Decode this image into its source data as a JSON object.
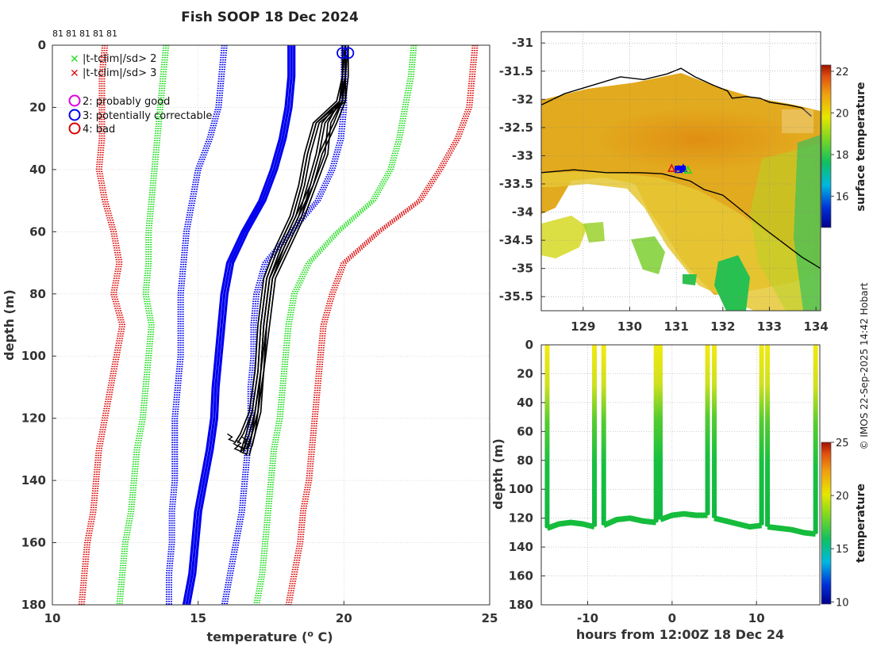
{
  "figure": {
    "title": "Fish SOOP 18 Dec 2024",
    "credit": "© IMOS 22-Sep-2025 14:42 Hobart",
    "profile_counts": [
      "81",
      "81",
      "81",
      "81",
      "81"
    ],
    "colors": {
      "profile": "#000000",
      "climatology": "#0000ee",
      "sd2": "#22dd22",
      "sd3": "#dd1111",
      "grid": "#c8c8c8",
      "good": "#dd00dd",
      "correctable": "#0000ee",
      "bad": "#dd0000"
    },
    "legend": {
      "cross_sd2": "|t-tclim|/sd> 2",
      "cross_sd3": "|t-tclim|/sd> 3",
      "flag2": "2: probably good",
      "flag3": "3: potentially correctable",
      "flag4": "4: bad"
    }
  },
  "chart_data": [
    {
      "type": "line",
      "title": "Fish SOOP 18 Dec 2024",
      "xlabel": "temperature (",
      "xlabel_sup": "o",
      "xlabel_end": " C)",
      "ylabel": "depth (m)",
      "xlim": [
        10,
        25
      ],
      "ylim": [
        0,
        180
      ],
      "y_reversed": true,
      "xticks": [
        "10",
        "15",
        "20",
        "25"
      ],
      "yticks": [
        "0",
        "20",
        "40",
        "60",
        "80",
        "100",
        "120",
        "140",
        "160",
        "180"
      ],
      "depth": [
        0,
        10,
        20,
        30,
        40,
        50,
        60,
        70,
        80,
        90,
        100,
        110,
        120,
        130,
        140,
        150,
        160,
        170,
        180
      ],
      "series": [
        {
          "name": "climatology mean",
          "style": "solid-thick",
          "color": "#0000ee",
          "values": [
            18.2,
            18.2,
            18.1,
            17.9,
            17.6,
            17.2,
            16.6,
            16.1,
            15.9,
            15.8,
            15.7,
            15.6,
            15.55,
            15.4,
            15.2,
            15.0,
            14.9,
            14.8,
            14.6
          ]
        },
        {
          "name": "mean -1 sd",
          "style": "dotted",
          "color": "#0000ee",
          "values": [
            15.9,
            15.8,
            15.7,
            15.4,
            15.0,
            14.8,
            14.6,
            14.5,
            14.4,
            14.4,
            14.4,
            14.3,
            14.2,
            14.2,
            14.2,
            14.1,
            14.1,
            14.0,
            14.0
          ]
        },
        {
          "name": "mean +1 sd",
          "style": "dotted",
          "color": "#0000ee",
          "values": [
            20.0,
            20.0,
            20.0,
            19.9,
            19.6,
            19.1,
            18.2,
            17.3,
            17.0,
            16.9,
            16.9,
            16.8,
            16.8,
            16.7,
            16.6,
            16.5,
            16.3,
            16.1,
            15.9
          ]
        },
        {
          "name": "mean -2 sd",
          "style": "dotted",
          "color": "#22dd22",
          "values": [
            13.9,
            13.8,
            13.7,
            13.6,
            13.5,
            13.4,
            13.3,
            13.3,
            13.2,
            13.4,
            13.3,
            13.2,
            13.1,
            12.9,
            12.8,
            12.7,
            12.5,
            12.4,
            12.3
          ]
        },
        {
          "name": "mean +2 sd",
          "style": "dotted",
          "color": "#22dd22",
          "values": [
            22.4,
            22.3,
            22.1,
            21.9,
            21.6,
            21.0,
            19.8,
            18.8,
            18.3,
            18.1,
            18.0,
            17.9,
            17.8,
            17.6,
            17.5,
            17.4,
            17.3,
            17.2,
            17.0
          ]
        },
        {
          "name": "mean -3 sd",
          "style": "dotted",
          "color": "#dd1111",
          "values": [
            11.8,
            11.7,
            11.7,
            11.7,
            11.6,
            11.8,
            12.1,
            12.3,
            12.1,
            12.4,
            12.2,
            12.0,
            11.8,
            11.6,
            11.5,
            11.4,
            11.2,
            11.1,
            11.0
          ]
        },
        {
          "name": "mean +3 sd",
          "style": "dotted",
          "color": "#dd1111",
          "values": [
            24.5,
            24.4,
            24.3,
            23.9,
            23.3,
            22.6,
            21.2,
            20.0,
            19.6,
            19.3,
            19.2,
            19.1,
            19.0,
            18.9,
            18.8,
            18.6,
            18.5,
            18.3,
            18.1
          ]
        }
      ],
      "profiles": [
        {
          "depth": [
            0,
            10,
            18,
            25,
            35,
            45,
            55,
            65,
            75,
            90,
            105,
            118,
            125,
            130
          ],
          "values": [
            20.0,
            20.0,
            19.9,
            19.3,
            19.1,
            18.8,
            18.5,
            18.0,
            17.5,
            17.3,
            17.2,
            17.0,
            16.8,
            16.6
          ]
        },
        {
          "depth": [
            0,
            10,
            18,
            25,
            35,
            45,
            55,
            65,
            75,
            90,
            105,
            118,
            125,
            131
          ],
          "values": [
            20.1,
            20.1,
            20.0,
            19.1,
            18.8,
            18.6,
            18.3,
            17.8,
            17.4,
            17.2,
            17.1,
            16.9,
            16.7,
            16.5
          ]
        },
        {
          "depth": [
            0,
            10,
            18,
            25,
            35,
            45,
            55,
            65,
            75,
            90,
            105,
            118,
            125,
            129
          ],
          "values": [
            20.0,
            20.0,
            19.9,
            19.5,
            19.4,
            19.0,
            18.6,
            18.1,
            17.6,
            17.4,
            17.2,
            17.1,
            16.9,
            16.8
          ]
        },
        {
          "depth": [
            0,
            10,
            18,
            25,
            35,
            45,
            55,
            65,
            75,
            90,
            105,
            118,
            125,
            132
          ],
          "values": [
            20.1,
            20.0,
            20.0,
            19.7,
            19.2,
            18.9,
            18.4,
            17.9,
            17.5,
            17.3,
            17.2,
            17.0,
            16.9,
            16.7
          ]
        },
        {
          "depth": [
            0,
            10,
            18,
            25,
            35,
            45,
            55,
            65,
            75,
            90,
            105,
            118,
            125,
            128
          ],
          "values": [
            20.0,
            20.0,
            19.8,
            19.0,
            18.7,
            18.5,
            18.2,
            17.7,
            17.3,
            17.1,
            17.0,
            16.8,
            16.5,
            16.3
          ]
        }
      ],
      "flag_markers": [
        {
          "label": "3",
          "t": 19.95,
          "depth": 1.5
        },
        {
          "label": "3",
          "t": 20.15,
          "depth": 1.5
        }
      ],
      "legend": [
        "|t-tclim|/sd> 2",
        "|t-tclim|/sd> 3",
        "2: probably good",
        "3: potentially correctable",
        "4: bad"
      ]
    },
    {
      "type": "heatmap",
      "title": "",
      "xlim": [
        128.1,
        134.1
      ],
      "ylim": [
        -35.75,
        -30.8
      ],
      "xticks": [
        "129",
        "130",
        "131",
        "132",
        "133",
        "134"
      ],
      "yticks": [
        "-31",
        "-31.5",
        "-32",
        "-32.5",
        "-33",
        "-33.5",
        "-34",
        "-34.5",
        "-35",
        "-35.5"
      ],
      "colorbar": {
        "label": "surface temperature",
        "range": [
          14.5,
          22.3
        ],
        "ticks": [
          "22",
          "20",
          "18",
          "16"
        ]
      },
      "coastline": [
        [
          128.1,
          -32.1
        ],
        [
          128.6,
          -31.9
        ],
        [
          129.2,
          -31.75
        ],
        [
          129.8,
          -31.6
        ],
        [
          130.3,
          -31.65
        ],
        [
          130.8,
          -31.55
        ],
        [
          131.1,
          -31.45
        ],
        [
          131.4,
          -31.6
        ],
        [
          131.8,
          -31.75
        ],
        [
          132.1,
          -31.85
        ],
        [
          132.2,
          -31.98
        ],
        [
          132.5,
          -31.95
        ],
        [
          132.8,
          -31.98
        ],
        [
          133.0,
          -32.05
        ],
        [
          133.4,
          -32.1
        ],
        [
          133.7,
          -32.15
        ],
        [
          133.9,
          -32.3
        ]
      ],
      "shelf_edge": [
        [
          128.1,
          -33.3
        ],
        [
          128.8,
          -33.25
        ],
        [
          129.5,
          -33.3
        ],
        [
          130.2,
          -33.3
        ],
        [
          130.7,
          -33.32
        ],
        [
          131.3,
          -33.45
        ],
        [
          131.6,
          -33.6
        ],
        [
          132.0,
          -33.7
        ],
        [
          132.3,
          -33.9
        ],
        [
          132.6,
          -34.1
        ],
        [
          132.9,
          -34.3
        ],
        [
          133.3,
          -34.55
        ],
        [
          133.7,
          -34.8
        ],
        [
          134.0,
          -34.95
        ],
        [
          134.1,
          -35.0
        ]
      ],
      "track": [
        {
          "lon": 130.9,
          "lat": -33.22
        },
        {
          "lon": 131.05,
          "lat": -33.24
        },
        {
          "lon": 131.15,
          "lat": -33.22
        },
        {
          "lon": 131.25,
          "lat": -33.25
        }
      ]
    },
    {
      "type": "scatter",
      "xlabel": "hours from 12:00Z 18 Dec 24",
      "ylabel": "depth (m)",
      "xlim": [
        -15.5,
        17.5
      ],
      "ylim": [
        0,
        180
      ],
      "y_reversed": true,
      "xticks": [
        "-10",
        "0",
        "10"
      ],
      "yticks": [
        "0",
        "20",
        "40",
        "60",
        "80",
        "100",
        "120",
        "140",
        "160",
        "180"
      ],
      "colorbar": {
        "label": "temperature",
        "range": [
          9.8,
          25
        ],
        "ticks": [
          "25",
          "20",
          "15",
          "10"
        ]
      },
      "casts": [
        {
          "down": -14.8,
          "up": -9.2,
          "bottom": [
            127,
            124,
            123,
            124,
            126
          ]
        },
        {
          "down": -8.1,
          "up": -1.9,
          "bottom": [
            125,
            121,
            120,
            122,
            123
          ]
        },
        {
          "down": -1.4,
          "up": 4.2,
          "bottom": [
            121,
            118,
            117,
            118,
            118
          ]
        },
        {
          "down": 5.0,
          "up": 10.6,
          "bottom": [
            120,
            122,
            124,
            126,
            125
          ]
        },
        {
          "down": 11.3,
          "up": 17.0,
          "bottom": [
            126,
            127,
            128,
            130,
            131
          ]
        }
      ]
    }
  ]
}
